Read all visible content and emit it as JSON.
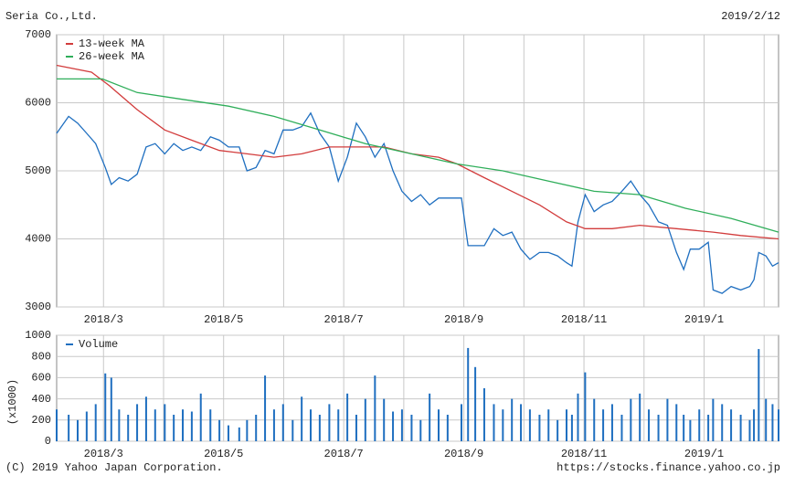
{
  "header": {
    "title": "Seria Co.,Ltd.",
    "date": "2019/2/12"
  },
  "footer": {
    "copyright": "(C) 2019 Yahoo Japan Corporation.",
    "url": "https://stocks.finance.yahoo.co.jp"
  },
  "chart_data": [
    {
      "type": "line",
      "xlim": [
        2.22,
        14.24
      ],
      "xticks": [
        {
          "value": 3,
          "label": "2018/3"
        },
        {
          "value": 4
        },
        {
          "value": 5,
          "label": "2018/5"
        },
        {
          "value": 6
        },
        {
          "value": 7,
          "label": "2018/7"
        },
        {
          "value": 8
        },
        {
          "value": 9,
          "label": "2018/9"
        },
        {
          "value": 10
        },
        {
          "value": 11,
          "label": "2018/11"
        },
        {
          "value": 12
        },
        {
          "value": 13,
          "label": "2019/1"
        },
        {
          "value": 14
        }
      ],
      "ylim": [
        3000,
        7000
      ],
      "yticks": [
        3000,
        4000,
        5000,
        6000,
        7000
      ],
      "grid": true,
      "legend": "top-left",
      "series": [
        {
          "color": "#1f6fc0",
          "x": [
            2.22,
            2.42,
            2.57,
            2.72,
            2.87,
            3.03,
            3.13,
            3.26,
            3.41,
            3.56,
            3.71,
            3.86,
            4.02,
            4.17,
            4.32,
            4.47,
            4.62,
            4.78,
            4.93,
            5.08,
            5.26,
            5.39,
            5.54,
            5.69,
            5.84,
            5.99,
            6.15,
            6.3,
            6.45,
            6.6,
            6.76,
            6.91,
            7.06,
            7.21,
            7.36,
            7.52,
            7.67,
            7.82,
            7.97,
            8.13,
            8.28,
            8.43,
            8.58,
            8.73,
            8.96,
            9.07,
            9.19,
            9.34,
            9.5,
            9.65,
            9.8,
            9.95,
            10.1,
            10.26,
            10.41,
            10.56,
            10.71,
            10.8,
            10.9,
            11.02,
            11.17,
            11.32,
            11.47,
            11.63,
            11.78,
            11.93,
            12.08,
            12.24,
            12.39,
            12.54,
            12.66,
            12.77,
            12.92,
            13.07,
            13.15,
            13.3,
            13.45,
            13.61,
            13.76,
            13.83,
            13.91,
            14.03,
            14.14,
            14.24
          ],
          "values": [
            5550,
            5800,
            5700,
            5550,
            5400,
            5050,
            4800,
            4900,
            4850,
            4950,
            5350,
            5400,
            5250,
            5400,
            5300,
            5350,
            5300,
            5500,
            5450,
            5350,
            5350,
            5000,
            5050,
            5300,
            5250,
            5600,
            5600,
            5650,
            5850,
            5550,
            5350,
            4850,
            5200,
            5700,
            5500,
            5200,
            5400,
            5000,
            4700,
            4550,
            4650,
            4500,
            4600,
            4600,
            4600,
            3900,
            3900,
            3900,
            4150,
            4050,
            4100,
            3850,
            3700,
            3800,
            3800,
            3750,
            3650,
            3600,
            4250,
            4650,
            4400,
            4500,
            4550,
            4700,
            4850,
            4650,
            4500,
            4250,
            4200,
            3800,
            3550,
            3850,
            3850,
            3950,
            3250,
            3200,
            3300,
            3250,
            3300,
            3400,
            3800,
            3750,
            3600,
            3650
          ]
        },
        {
          "name": "13-week MA",
          "color": "#d23c3c",
          "x": [
            2.22,
            2.8,
            3.1,
            3.56,
            4.02,
            4.47,
            4.93,
            5.39,
            5.84,
            6.3,
            6.76,
            7.21,
            7.67,
            8.13,
            8.58,
            8.89,
            9.34,
            9.8,
            10.26,
            10.71,
            11.02,
            11.47,
            11.93,
            12.54,
            13.15,
            13.61,
            14.24
          ],
          "values": [
            6550,
            6450,
            6250,
            5900,
            5600,
            5450,
            5300,
            5250,
            5200,
            5250,
            5350,
            5350,
            5350,
            5250,
            5200,
            5100,
            4900,
            4700,
            4500,
            4250,
            4150,
            4150,
            4200,
            4150,
            4100,
            4050,
            4000
          ]
        },
        {
          "name": "26-week MA",
          "color": "#2fae5a",
          "x": [
            2.22,
            2.98,
            3.56,
            4.32,
            5.08,
            5.84,
            6.6,
            7.36,
            8.13,
            8.89,
            9.65,
            10.41,
            11.17,
            11.93,
            12.69,
            13.45,
            14.24
          ],
          "values": [
            6350,
            6350,
            6150,
            6050,
            5950,
            5800,
            5600,
            5400,
            5250,
            5100,
            5000,
            4850,
            4700,
            4650,
            4450,
            4300,
            4100
          ]
        }
      ]
    },
    {
      "type": "bar",
      "ylabel": "(x1000)",
      "xlim": [
        2.22,
        14.24
      ],
      "xticks": [
        {
          "value": 3,
          "label": "2018/3"
        },
        {
          "value": 4
        },
        {
          "value": 5,
          "label": "2018/5"
        },
        {
          "value": 6
        },
        {
          "value": 7,
          "label": "2018/7"
        },
        {
          "value": 8
        },
        {
          "value": 9,
          "label": "2018/9"
        },
        {
          "value": 10
        },
        {
          "value": 11,
          "label": "2018/11"
        },
        {
          "value": 12
        },
        {
          "value": 13,
          "label": "2019/1"
        },
        {
          "value": 14
        }
      ],
      "ylim": [
        0,
        1000
      ],
      "yticks": [
        0,
        200,
        400,
        600,
        800,
        1000
      ],
      "grid": true,
      "legend": "top-left",
      "series": [
        {
          "name": "Volume",
          "color": "#1f6fc0",
          "x": [
            2.22,
            2.42,
            2.57,
            2.72,
            2.87,
            3.03,
            3.13,
            3.26,
            3.41,
            3.56,
            3.71,
            3.86,
            4.02,
            4.17,
            4.32,
            4.47,
            4.62,
            4.78,
            4.93,
            5.08,
            5.26,
            5.39,
            5.54,
            5.69,
            5.84,
            5.99,
            6.15,
            6.3,
            6.45,
            6.6,
            6.76,
            6.91,
            7.06,
            7.21,
            7.36,
            7.52,
            7.67,
            7.82,
            7.97,
            8.13,
            8.28,
            8.43,
            8.58,
            8.73,
            8.96,
            9.07,
            9.19,
            9.34,
            9.5,
            9.65,
            9.8,
            9.95,
            10.1,
            10.26,
            10.41,
            10.56,
            10.71,
            10.8,
            10.9,
            11.02,
            11.17,
            11.32,
            11.47,
            11.63,
            11.78,
            11.93,
            12.08,
            12.24,
            12.39,
            12.54,
            12.66,
            12.77,
            12.92,
            13.07,
            13.15,
            13.3,
            13.45,
            13.61,
            13.76,
            13.83,
            13.91,
            14.03,
            14.14,
            14.24
          ],
          "values": [
            300,
            250,
            200,
            280,
            350,
            640,
            600,
            300,
            250,
            350,
            420,
            300,
            350,
            250,
            300,
            280,
            450,
            300,
            200,
            150,
            130,
            200,
            250,
            620,
            300,
            350,
            200,
            420,
            300,
            250,
            350,
            300,
            450,
            250,
            400,
            620,
            400,
            280,
            300,
            250,
            200,
            450,
            300,
            250,
            350,
            880,
            700,
            500,
            350,
            300,
            400,
            350,
            300,
            250,
            300,
            200,
            300,
            250,
            450,
            650,
            400,
            300,
            350,
            250,
            400,
            450,
            300,
            250,
            400,
            350,
            250,
            200,
            300,
            250,
            400,
            350,
            300,
            250,
            200,
            300,
            870,
            400,
            350,
            300
          ]
        }
      ]
    }
  ]
}
